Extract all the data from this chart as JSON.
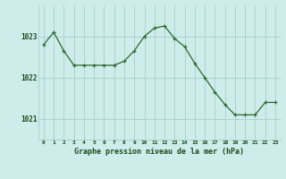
{
  "hours": [
    0,
    1,
    2,
    3,
    4,
    5,
    6,
    7,
    8,
    9,
    10,
    11,
    12,
    13,
    14,
    15,
    16,
    17,
    18,
    19,
    20,
    21,
    22,
    23
  ],
  "pressure": [
    1022.8,
    1023.1,
    1022.65,
    1022.3,
    1022.3,
    1022.3,
    1022.3,
    1022.3,
    1022.4,
    1022.65,
    1023.0,
    1023.2,
    1023.25,
    1022.95,
    1022.75,
    1022.35,
    1022.0,
    1021.65,
    1021.35,
    1021.1,
    1021.1,
    1021.1,
    1021.4,
    1021.4
  ],
  "line_color": "#2d6a2d",
  "marker_color": "#2d6a2d",
  "bg_color": "#cdecea",
  "grid_color": "#aacfcd",
  "xlabel": "Graphe pression niveau de la mer (hPa)",
  "xlabel_color": "#1a4a1a",
  "tick_label_color": "#1a4a1a",
  "ylim": [
    1020.5,
    1023.75
  ],
  "yticks": [
    1021,
    1022,
    1023
  ],
  "xticks": [
    0,
    1,
    2,
    3,
    4,
    5,
    6,
    7,
    8,
    9,
    10,
    11,
    12,
    13,
    14,
    15,
    16,
    17,
    18,
    19,
    20,
    21,
    22,
    23
  ],
  "figsize": [
    3.2,
    2.0
  ],
  "dpi": 100
}
